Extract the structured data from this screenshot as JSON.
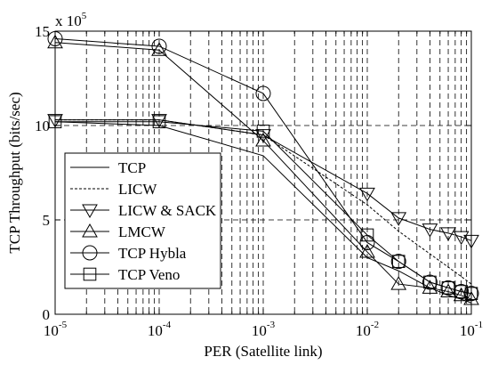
{
  "chart_data": {
    "type": "line",
    "xlabel": "PER (Satellite link)",
    "ylabel": "TCP Throughput (bits/sec)",
    "x_scale": "log",
    "xlim": [
      1e-05,
      0.1
    ],
    "ylim": [
      0,
      1500000
    ],
    "y_multiplier_label": "x 10",
    "y_multiplier_exp": "5",
    "x_ticks": [
      {
        "value": 1e-05,
        "base": "10",
        "exp": "-5"
      },
      {
        "value": 0.0001,
        "base": "10",
        "exp": "-4"
      },
      {
        "value": 0.001,
        "base": "10",
        "exp": "-3"
      },
      {
        "value": 0.01,
        "base": "10",
        "exp": "-2"
      },
      {
        "value": 0.1,
        "base": "10",
        "exp": "-1"
      }
    ],
    "y_ticks": [
      {
        "value": 0,
        "label": "0"
      },
      {
        "value": 500000,
        "label": "5"
      },
      {
        "value": 1000000,
        "label": "10"
      },
      {
        "value": 1500000,
        "label": "15"
      }
    ],
    "grid": true,
    "legend_position": "left",
    "series": [
      {
        "name": "TCP",
        "style": "solid",
        "marker": "none",
        "x": [
          1e-05,
          0.0001,
          0.001,
          0.01,
          0.02,
          0.04,
          0.06,
          0.08,
          0.1
        ],
        "y": [
          1020000,
          1000000,
          840000,
          300000,
          230000,
          140000,
          100000,
          80000,
          60000
        ]
      },
      {
        "name": "LICW",
        "style": "dashed",
        "marker": "none",
        "x": [
          1e-05,
          0.0001,
          0.001,
          0.01,
          0.02,
          0.04,
          0.06,
          0.08,
          0.1
        ],
        "y": [
          1030000,
          1030000,
          950000,
          580000,
          440000,
          320000,
          250000,
          200000,
          160000
        ]
      },
      {
        "name": "LICW & SACK",
        "style": "solid",
        "marker": "triangle-down",
        "x": [
          1e-05,
          0.0001,
          0.001,
          0.01,
          0.02,
          0.04,
          0.06,
          0.08,
          0.1
        ],
        "y": [
          1030000,
          1030000,
          950000,
          640000,
          510000,
          450000,
          430000,
          410000,
          390000
        ]
      },
      {
        "name": "LMCW",
        "style": "solid",
        "marker": "triangle-up",
        "x": [
          1e-05,
          0.0001,
          0.001,
          0.01,
          0.02,
          0.04,
          0.06,
          0.08,
          0.1
        ],
        "y": [
          1440000,
          1400000,
          920000,
          330000,
          160000,
          140000,
          120000,
          100000,
          80000
        ]
      },
      {
        "name": "TCP Hybla",
        "style": "solid",
        "marker": "circle",
        "x": [
          1e-05,
          0.0001,
          0.001,
          0.01,
          0.02,
          0.04,
          0.06,
          0.08,
          0.1
        ],
        "y": [
          1460000,
          1420000,
          1170000,
          380000,
          280000,
          170000,
          140000,
          120000,
          110000
        ]
      },
      {
        "name": "TCP Veno",
        "style": "solid",
        "marker": "square",
        "x": [
          1e-05,
          0.0001,
          0.001,
          0.01,
          0.02,
          0.04,
          0.06,
          0.08,
          0.1
        ],
        "y": [
          1020000,
          1020000,
          970000,
          420000,
          280000,
          170000,
          140000,
          120000,
          110000
        ]
      }
    ]
  }
}
